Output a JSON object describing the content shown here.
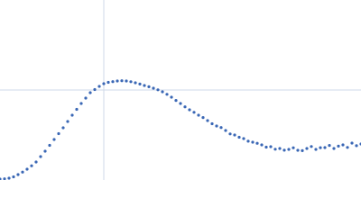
{
  "chart_data": {
    "type": "scatter",
    "color": "#3a67b5",
    "grid_color": "#cfd8e8",
    "grid": true,
    "xlim": [
      0,
      400
    ],
    "ylim": [
      0,
      200
    ],
    "xticks": [
      115
    ],
    "yticks": [
      100
    ],
    "x": [
      0,
      5,
      10,
      15,
      20,
      25,
      30,
      35,
      40,
      45,
      50,
      55,
      60,
      65,
      70,
      75,
      80,
      85,
      90,
      95,
      100,
      105,
      110,
      115,
      120,
      125,
      130,
      135,
      140,
      145,
      150,
      155,
      160,
      165,
      170,
      175,
      180,
      185,
      190,
      195,
      200,
      205,
      210,
      215,
      220,
      225,
      230,
      235,
      240,
      245,
      250,
      255,
      260,
      265,
      270,
      275,
      280,
      285,
      290,
      295,
      300,
      305,
      310,
      315,
      320,
      325,
      330,
      335,
      340,
      345,
      350,
      355,
      360,
      365,
      370,
      375,
      380,
      385,
      390,
      395,
      400
    ],
    "values": [
      1,
      1.3,
      2,
      3.5,
      6,
      8.8,
      12,
      15.8,
      20,
      26,
      32,
      38.5,
      45,
      51.5,
      58,
      65,
      72,
      78.5,
      85,
      91,
      97,
      100.5,
      104,
      107,
      108.5,
      109.3,
      110,
      110.3,
      110,
      109.2,
      108,
      106.6,
      105,
      103.6,
      102,
      100.2,
      98,
      95.2,
      92,
      88.4,
      85,
      81.3,
      78,
      75.2,
      72,
      69.4,
      66,
      62.5,
      60,
      58.3,
      55,
      51.2,
      50,
      47.5,
      46,
      43.1,
      42,
      40.8,
      39,
      36.5,
      37,
      34.2,
      35,
      33.1,
      34,
      35.8,
      33,
      32.6,
      35,
      37.2,
      34,
      35.9,
      36,
      38.4,
      35,
      37.6,
      39,
      36.2,
      41,
      38.1,
      40
    ]
  }
}
